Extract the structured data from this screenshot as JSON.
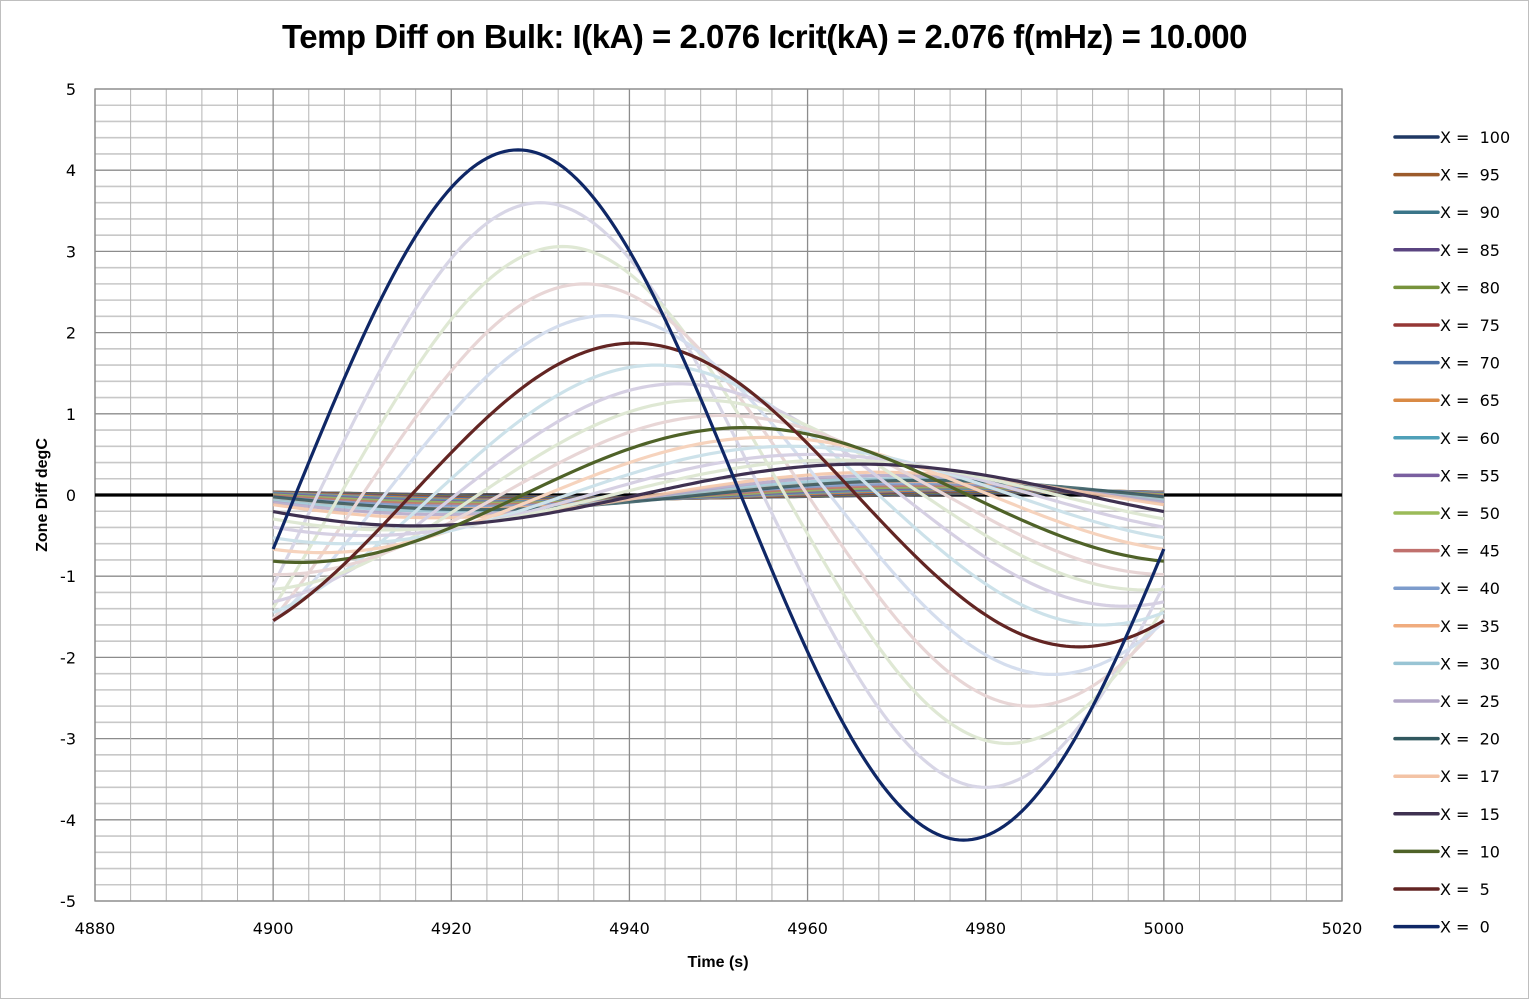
{
  "chart_data": {
    "type": "line",
    "title": "Temp Diff on Bulk:  I(kA) = 2.076 Icrit(kA) = 2.076 f(mHz) = 10.000",
    "xlabel": "Time (s)",
    "ylabel": "Zone Diff degC",
    "xlim": [
      4880,
      5020
    ],
    "ylim": [
      -5,
      5
    ],
    "x_ticks": [
      "4880",
      "4900",
      "4920",
      "4940",
      "4960",
      "4980",
      "5000",
      "5020"
    ],
    "y_ticks": [
      "5",
      "4",
      "3",
      "2",
      "1",
      "0",
      "-1",
      "-2",
      "-3",
      "-4",
      "-5"
    ],
    "grid": true,
    "legend_position": "right",
    "x_range_data": [
      4900,
      5000
    ],
    "period_s": 100,
    "series": [
      {
        "name": "X =  100",
        "color": "#1f3864",
        "amplitude": 0.03,
        "peak_time": 4995,
        "legend": true
      },
      {
        "name": "X =  95",
        "color": "#9c5b2b",
        "amplitude": 0.035,
        "peak_time": 4993,
        "legend": true
      },
      {
        "name": "X =  90",
        "color": "#3a7589",
        "amplitude": 0.04,
        "peak_time": 4991,
        "legend": true
      },
      {
        "name": "X =  85",
        "color": "#5a4480",
        "amplitude": 0.045,
        "peak_time": 4989,
        "legend": true
      },
      {
        "name": "X =  80",
        "color": "#77933c",
        "amplitude": 0.05,
        "peak_time": 4987,
        "legend": true
      },
      {
        "name": "X =  75",
        "color": "#953735",
        "amplitude": 0.055,
        "peak_time": 4985,
        "legend": true
      },
      {
        "name": "X =  70",
        "color": "#4a6fa5",
        "amplitude": 0.06,
        "peak_time": 4983,
        "legend": true
      },
      {
        "name": "X =  65",
        "color": "#d98a45",
        "amplitude": 0.07,
        "peak_time": 4981,
        "legend": true
      },
      {
        "name": "X =  60",
        "color": "#4fa0b8",
        "amplitude": 0.08,
        "peak_time": 4979,
        "legend": true
      },
      {
        "name": "X =  55",
        "color": "#7a5fa0",
        "amplitude": 0.09,
        "peak_time": 4977,
        "legend": true
      },
      {
        "name": "X =  50",
        "color": "#9bbb59",
        "amplitude": 0.1,
        "peak_time": 4975,
        "legend": true
      },
      {
        "name": "X =  45",
        "color": "#c0706d",
        "amplitude": 0.12,
        "peak_time": 4973.5,
        "legend": true
      },
      {
        "name": "X =  40",
        "color": "#7d9ccc",
        "amplitude": 0.14,
        "peak_time": 4972,
        "legend": true
      },
      {
        "name": "X =  35",
        "color": "#f0ac7e",
        "amplitude": 0.17,
        "peak_time": 4971,
        "legend": true
      },
      {
        "name": "X =  30",
        "color": "#98c4d4",
        "amplitude": 0.2,
        "peak_time": 4970,
        "legend": true
      },
      {
        "name": "X =  25",
        "color": "#b1a5c6",
        "amplitude": 0.24,
        "peak_time": 4969,
        "legend": true
      },
      {
        "name": "X =  20",
        "color": "#31585f",
        "amplitude": 0.18,
        "peak_time": 4973,
        "legend": true
      },
      {
        "name": "X =  17",
        "color": "#f3c3a5",
        "amplitude": 0.28,
        "peak_time": 4968,
        "legend": true
      },
      {
        "name": "X =  15",
        "color": "#3f3151",
        "amplitude": 0.38,
        "peak_time": 4966,
        "legend": true
      },
      {
        "name": "X =  10",
        "color": "#4f6228",
        "amplitude": 0.83,
        "peak_time": 4953,
        "legend": true
      },
      {
        "name": "X =  5",
        "color": "#632523",
        "amplitude": 1.87,
        "peak_time": 4940.5,
        "legend": true
      },
      {
        "name": "X =  0",
        "color": "#0f2766",
        "amplitude": 4.25,
        "peak_time": 4927.5,
        "legend": true
      },
      {
        "name": "",
        "color": "#d8d6e6",
        "amplitude": 3.6,
        "peak_time": 4930,
        "legend": false
      },
      {
        "name": "",
        "color": "#dfe8d4",
        "amplitude": 3.06,
        "peak_time": 4932.5,
        "legend": false
      },
      {
        "name": "",
        "color": "#e8d6d6",
        "amplitude": 2.6,
        "peak_time": 4935,
        "legend": false
      },
      {
        "name": "",
        "color": "#d5deee",
        "amplitude": 2.21,
        "peak_time": 4937.5,
        "legend": false
      },
      {
        "name": "",
        "color": "#cde2ea",
        "amplitude": 1.6,
        "peak_time": 4943,
        "legend": false
      },
      {
        "name": "",
        "color": "#d6d0e3",
        "amplitude": 1.37,
        "peak_time": 4945.5,
        "legend": false
      },
      {
        "name": "",
        "color": "#dfe8d4",
        "amplitude": 1.17,
        "peak_time": 4948,
        "legend": false
      },
      {
        "name": "",
        "color": "#e8d6d6",
        "amplitude": 0.98,
        "peak_time": 4950.5,
        "legend": false
      },
      {
        "name": "",
        "color": "#f6d3bd",
        "amplitude": 0.71,
        "peak_time": 4955.5,
        "legend": false
      },
      {
        "name": "",
        "color": "#cde2ea",
        "amplitude": 0.6,
        "peak_time": 4958,
        "legend": false
      },
      {
        "name": "",
        "color": "#d6d0e3",
        "amplitude": 0.5,
        "peak_time": 4960.5,
        "legend": false
      },
      {
        "name": "",
        "color": "#dfe8d4",
        "amplitude": 0.43,
        "peak_time": 4963,
        "legend": false
      }
    ],
    "reference_line": {
      "y": 0,
      "color": "#000000"
    }
  }
}
